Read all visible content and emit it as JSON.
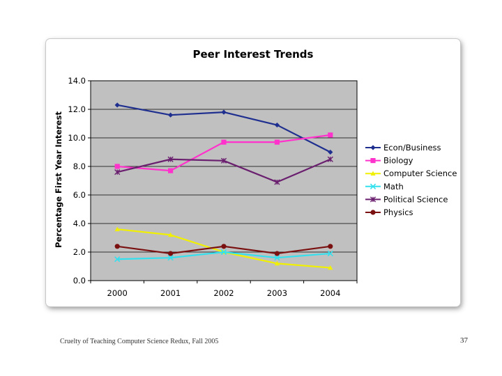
{
  "chart_data": {
    "type": "line",
    "title": "Peer Interest Trends",
    "xlabel": "",
    "ylabel": "Percentage First Year Interest",
    "x": [
      "2000",
      "2001",
      "2002",
      "2003",
      "2004"
    ],
    "ylim": [
      0,
      14
    ],
    "yticks": [
      "0.0",
      "2.0",
      "4.0",
      "6.0",
      "8.0",
      "10.0",
      "12.0",
      "14.0"
    ],
    "grid": true,
    "legend": "right",
    "plot_bg": "#c0c0c0",
    "series": [
      {
        "name": "Econ/Business",
        "values": [
          12.3,
          11.6,
          11.8,
          10.9,
          9.0
        ],
        "color": "#1f2f8f",
        "marker": "diamond"
      },
      {
        "name": "Biology",
        "values": [
          8.0,
          7.7,
          9.7,
          9.7,
          10.2
        ],
        "color": "#ff33cc",
        "marker": "square"
      },
      {
        "name": "Computer Science",
        "values": [
          3.6,
          3.2,
          2.0,
          1.2,
          0.9
        ],
        "color": "#f0f000",
        "marker": "triangle"
      },
      {
        "name": "Math",
        "values": [
          1.5,
          1.6,
          2.0,
          1.6,
          1.9
        ],
        "color": "#33e0ee",
        "marker": "x"
      },
      {
        "name": "Political Science",
        "values": [
          7.6,
          8.5,
          8.4,
          6.9,
          8.5
        ],
        "color": "#6a1f6f",
        "marker": "star"
      },
      {
        "name": "Physics",
        "values": [
          2.4,
          1.9,
          2.4,
          1.9,
          2.4
        ],
        "color": "#7a1010",
        "marker": "circle"
      }
    ]
  },
  "footer": {
    "text": "Cruelty of Teaching Computer Science Redux, Fall 2005",
    "page_number": "37"
  }
}
